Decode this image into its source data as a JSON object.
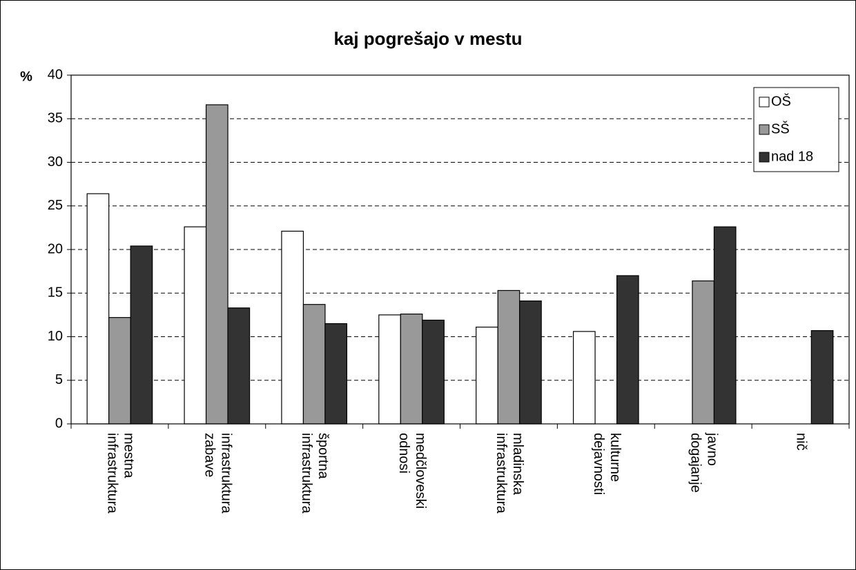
{
  "chart_data": {
    "type": "bar",
    "title": "kaj pogrešajo v mestu",
    "y_label": "%",
    "categories": [
      "mestna infrastruktura",
      "infrastruktura zabave",
      "športna infrastruktura",
      "medčloveski odnosi",
      "mladinska infrastruktura",
      "kulturne dejavnosti",
      "javno dogajanje",
      "nič"
    ],
    "series": [
      {
        "name": "OŠ",
        "color": "#ffffff",
        "values": [
          26.4,
          22.6,
          22.1,
          12.5,
          11.1,
          10.6,
          null,
          null
        ]
      },
      {
        "name": "SŠ",
        "color": "#999999",
        "values": [
          12.2,
          36.6,
          13.7,
          12.6,
          15.3,
          null,
          16.4,
          null
        ]
      },
      {
        "name": "nad 18",
        "color": "#333333",
        "values": [
          20.4,
          13.3,
          11.5,
          11.9,
          14.1,
          17.0,
          22.6,
          10.7
        ]
      }
    ],
    "ylim": [
      0,
      40
    ],
    "yticks": [
      0,
      5,
      10,
      15,
      20,
      25,
      30,
      35,
      40
    ],
    "grid": true,
    "legend": "upper right"
  }
}
